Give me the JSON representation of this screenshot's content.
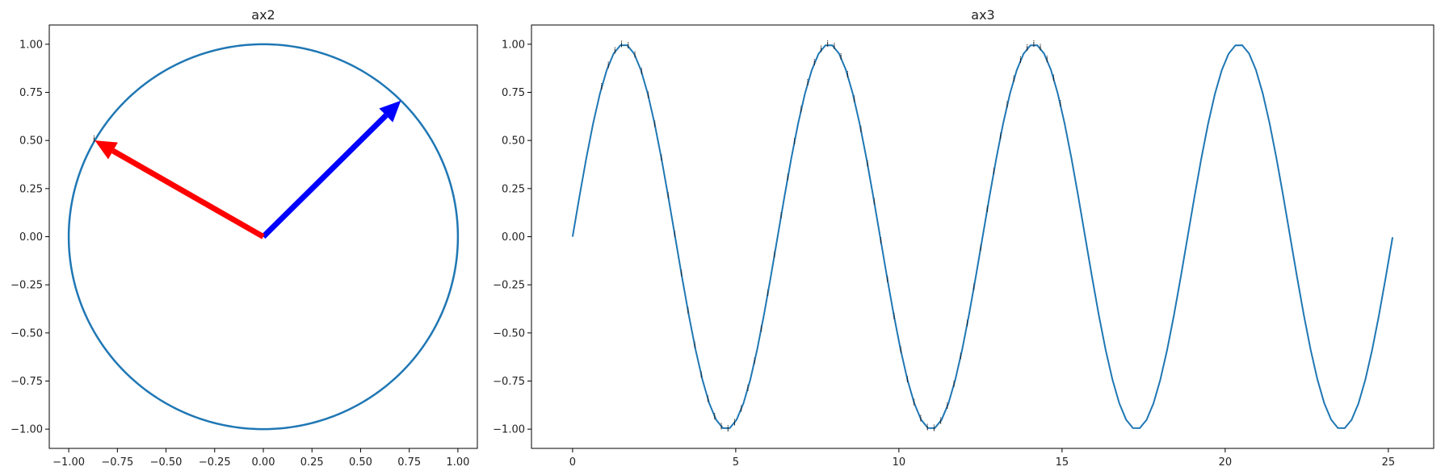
{
  "chart_data": [
    {
      "type": "line",
      "title": "ax2",
      "xlabel": "",
      "ylabel": "",
      "xlim": [
        -1.1,
        1.1
      ],
      "ylim": [
        -1.1,
        1.1
      ],
      "x_ticks": [
        -1.0,
        -0.75,
        -0.5,
        -0.25,
        0.0,
        0.25,
        0.5,
        0.75,
        1.0
      ],
      "x_tick_labels": [
        "−1.00",
        "−0.75",
        "−0.50",
        "−0.25",
        "0.00",
        "0.25",
        "0.50",
        "0.75",
        "1.00"
      ],
      "y_ticks": [
        -1.0,
        -0.75,
        -0.5,
        -0.25,
        0.0,
        0.25,
        0.5,
        0.75,
        1.0
      ],
      "y_tick_labels": [
        "−1.00",
        "−0.75",
        "−0.50",
        "−0.25",
        "0.00",
        "0.25",
        "0.50",
        "0.75",
        "1.00"
      ],
      "series": [
        {
          "kind": "unit-circle",
          "center": [
            0,
            0
          ],
          "radius": 1,
          "color": "#1f77b4"
        }
      ],
      "arrows": [
        {
          "from": [
            0,
            0
          ],
          "to": [
            0.707,
            0.707
          ],
          "color": "#0000ff"
        },
        {
          "from": [
            0,
            0
          ],
          "to": [
            -0.866,
            0.5
          ],
          "color": "#ff0000"
        }
      ],
      "annotations": [
        {
          "text": "i",
          "x": -0.866,
          "y": 0.5
        }
      ],
      "grid": false
    },
    {
      "type": "line",
      "title": "ax3",
      "xlabel": "",
      "ylabel": "",
      "xlim": [
        -1.26,
        26.39
      ],
      "ylim": [
        -1.1,
        1.1
      ],
      "x_ticks": [
        0,
        5,
        10,
        15,
        20,
        25
      ],
      "x_tick_labels": [
        "0",
        "5",
        "10",
        "15",
        "20",
        "25"
      ],
      "y_ticks": [
        -1.0,
        -0.75,
        -0.5,
        -0.25,
        0.0,
        0.25,
        0.5,
        0.75,
        1.0
      ],
      "y_tick_labels": [
        "−1.00",
        "−0.75",
        "−0.50",
        "−0.25",
        "0.00",
        "0.25",
        "0.50",
        "0.75",
        "1.00"
      ],
      "series": [
        {
          "function": "sin(x)",
          "x_start": 0,
          "x_end": 25.13,
          "samples": 121,
          "color": "#1f77b4"
        }
      ],
      "annotation_text": "i",
      "annotation_x": [
        0.889,
        1.095,
        1.298,
        1.502,
        1.705,
        1.909,
        2.113,
        2.317,
        2.52,
        2.724,
        2.928,
        3.132,
        3.335,
        3.539,
        3.743,
        3.946,
        4.15,
        4.354,
        4.558,
        4.761,
        4.965,
        5.169,
        5.373,
        5.576,
        5.78,
        5.984,
        6.187,
        6.391,
        6.595,
        6.799,
        7.002,
        7.206,
        7.41,
        7.614,
        7.817,
        8.021,
        8.225,
        8.428,
        8.632,
        8.836,
        9.04,
        9.243,
        9.447,
        9.651,
        9.855,
        10.058,
        10.262,
        10.466,
        10.669,
        10.873,
        11.077,
        11.281,
        11.484,
        11.688,
        11.892,
        12.096,
        12.299,
        12.503,
        12.707,
        12.91,
        13.114,
        13.318,
        13.522,
        13.725,
        13.929,
        14.133,
        14.337,
        14.54,
        14.744,
        14.948
      ],
      "grid": false
    }
  ]
}
